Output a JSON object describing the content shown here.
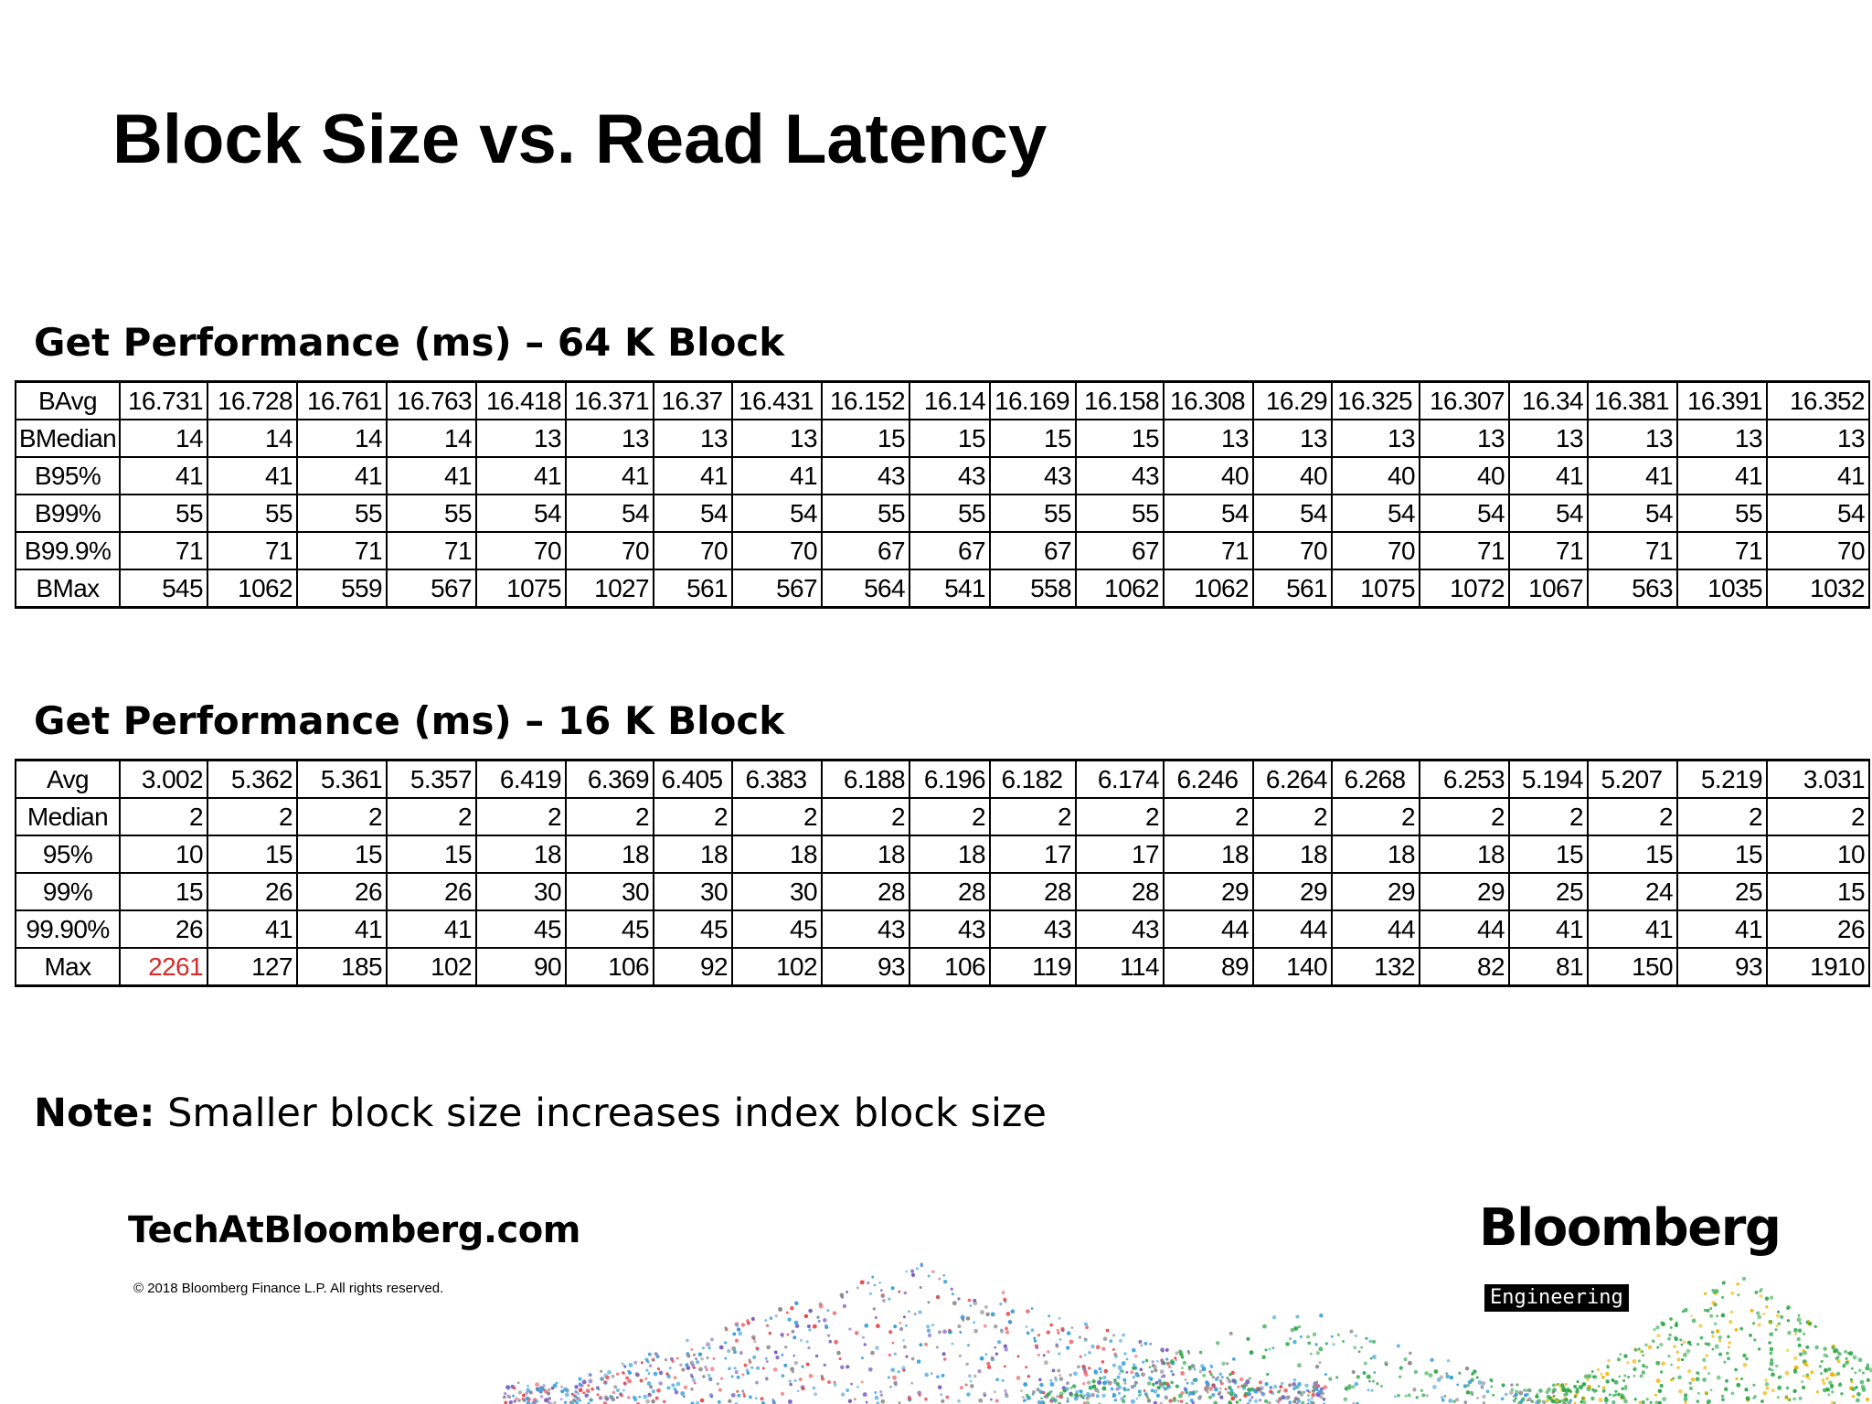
{
  "slide": {
    "title": "Block Size vs. Read Latency"
  },
  "table_64k": {
    "heading": "Get Performance (ms) – 64 K Block",
    "rows": [
      {
        "label": "BAvg",
        "values": [
          "16.731",
          "16.728",
          "16.761",
          "16.763",
          "16.418",
          "16.371",
          "16.37",
          "16.431",
          "16.152",
          "16.14",
          "16.169",
          "16.158",
          "16.308",
          "16.29",
          "16.325",
          "16.307",
          "16.34",
          "16.381",
          "16.391",
          "16.352"
        ]
      },
      {
        "label": "BMedian",
        "values": [
          "14",
          "14",
          "14",
          "14",
          "13",
          "13",
          "13",
          "13",
          "15",
          "15",
          "15",
          "15",
          "13",
          "13",
          "13",
          "13",
          "13",
          "13",
          "13",
          "13"
        ]
      },
      {
        "label": "B95%",
        "values": [
          "41",
          "41",
          "41",
          "41",
          "41",
          "41",
          "41",
          "41",
          "43",
          "43",
          "43",
          "43",
          "40",
          "40",
          "40",
          "40",
          "41",
          "41",
          "41",
          "41"
        ]
      },
      {
        "label": "B99%",
        "values": [
          "55",
          "55",
          "55",
          "55",
          "54",
          "54",
          "54",
          "54",
          "55",
          "55",
          "55",
          "55",
          "54",
          "54",
          "54",
          "54",
          "54",
          "54",
          "55",
          "54"
        ]
      },
      {
        "label": "B99.9%",
        "values": [
          "71",
          "71",
          "71",
          "71",
          "70",
          "70",
          "70",
          "70",
          "67",
          "67",
          "67",
          "67",
          "71",
          "70",
          "70",
          "71",
          "71",
          "71",
          "71",
          "70"
        ]
      },
      {
        "label": "BMax",
        "values": [
          "545",
          "1062",
          "559",
          "567",
          "1075",
          "1027",
          "561",
          "567",
          "564",
          "541",
          "558",
          "1062",
          "1062",
          "561",
          "1075",
          "1072",
          "1067",
          "563",
          "1035",
          "1032"
        ]
      }
    ]
  },
  "table_16k": {
    "heading": "Get Performance (ms) – 16 K Block",
    "rows": [
      {
        "label": "Avg",
        "values": [
          "3.002",
          "5.362",
          "5.361",
          "5.357",
          "6.419",
          "6.369",
          "6.405",
          "6.383",
          "6.188",
          "6.196",
          "6.182",
          "6.174",
          "6.246",
          "6.264",
          "6.268",
          "6.253",
          "5.194",
          "5.207",
          "5.219",
          "3.031"
        ]
      },
      {
        "label": "Median",
        "values": [
          "2",
          "2",
          "2",
          "2",
          "2",
          "2",
          "2",
          "2",
          "2",
          "2",
          "2",
          "2",
          "2",
          "2",
          "2",
          "2",
          "2",
          "2",
          "2",
          "2"
        ]
      },
      {
        "label": "95%",
        "values": [
          "10",
          "15",
          "15",
          "15",
          "18",
          "18",
          "18",
          "18",
          "18",
          "18",
          "17",
          "17",
          "18",
          "18",
          "18",
          "18",
          "15",
          "15",
          "15",
          "10"
        ]
      },
      {
        "label": "99%",
        "values": [
          "15",
          "26",
          "26",
          "26",
          "30",
          "30",
          "30",
          "30",
          "28",
          "28",
          "28",
          "28",
          "29",
          "29",
          "29",
          "29",
          "25",
          "24",
          "25",
          "15"
        ]
      },
      {
        "label": "99.90%",
        "values": [
          "26",
          "41",
          "41",
          "41",
          "45",
          "45",
          "45",
          "45",
          "43",
          "43",
          "43",
          "43",
          "44",
          "44",
          "44",
          "44",
          "41",
          "41",
          "41",
          "26"
        ]
      },
      {
        "label": "Max",
        "values": [
          "2261",
          "127",
          "185",
          "102",
          "90",
          "106",
          "92",
          "102",
          "93",
          "106",
          "119",
          "114",
          "89",
          "140",
          "132",
          "82",
          "81",
          "150",
          "93",
          "1910"
        ]
      }
    ],
    "highlight": {
      "row": 5,
      "col": 0,
      "color": "#d62b2b"
    }
  },
  "note": {
    "label": "Note:",
    "text": " Smaller block size increases index block size"
  },
  "footer": {
    "site": "TechAtBloomberg.com",
    "copyright": "© 2018 Bloomberg Finance L.P. All rights reserved.",
    "brand": "Bloomberg",
    "badge": "Engineering"
  },
  "colors": {
    "highlight": "#d62b2b",
    "dots": [
      "#e8484a",
      "#3aa0dc",
      "#7a5fc0",
      "#2ea84a",
      "#f0b400",
      "#8a8a8a"
    ]
  }
}
